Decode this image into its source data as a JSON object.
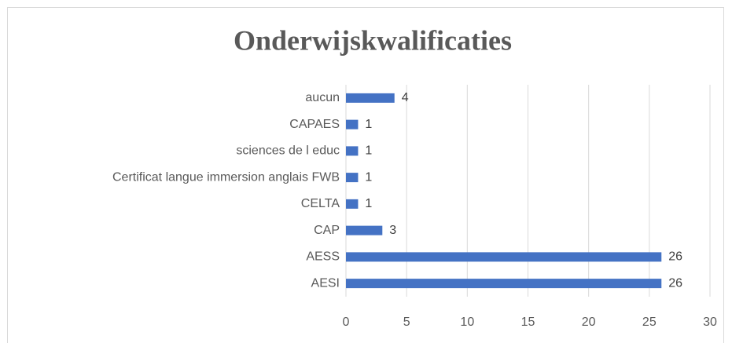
{
  "chart_data": {
    "type": "bar",
    "orientation": "horizontal",
    "title": "Onderwijskwalificaties",
    "categories": [
      "aucun",
      "CAPAES",
      "sciences de l educ",
      "Certificat langue immersion anglais FWB",
      "CELTA",
      "CAP",
      "AESS",
      "AESI"
    ],
    "values": [
      4,
      1,
      1,
      1,
      1,
      3,
      26,
      26
    ],
    "color": "#4472c4",
    "xlim": [
      0,
      30
    ],
    "xticks": [
      0,
      5,
      10,
      15,
      20,
      25,
      30
    ],
    "grid": true
  }
}
